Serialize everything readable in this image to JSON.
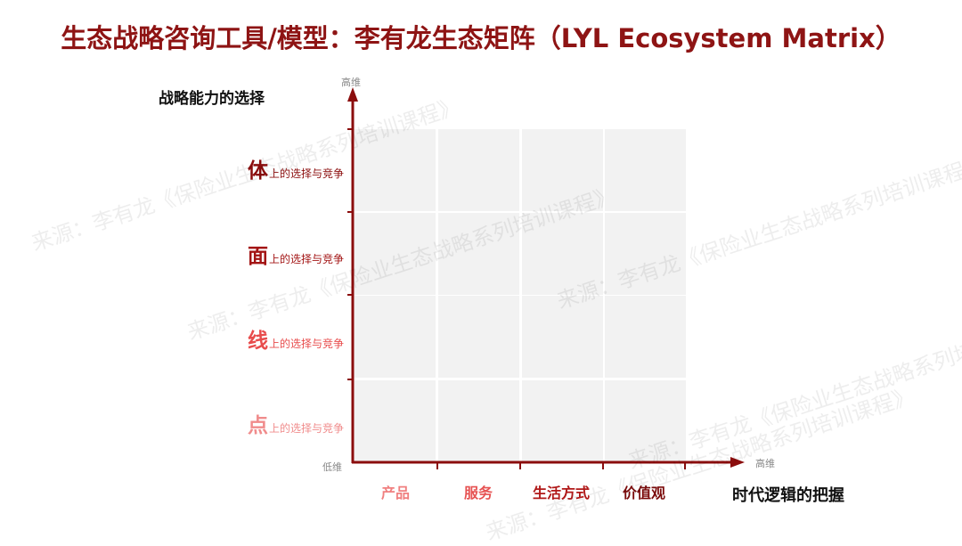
{
  "title": "生态战略咨询工具/模型：李有龙生态矩阵（LYL Ecosystem Matrix）",
  "y_axis": {
    "label": "战略能力的选择",
    "high": "高维",
    "low": "低维"
  },
  "x_axis": {
    "label": "时代逻辑的把握",
    "high": "高维"
  },
  "rows": [
    {
      "key": "体",
      "suffix": "上的选择与竞争",
      "color": "#8b0d0d"
    },
    {
      "key": "面",
      "suffix": "上的选择与竞争",
      "color": "#a31515"
    },
    {
      "key": "线",
      "suffix": "上的选择与竞争",
      "color": "#e84c4c"
    },
    {
      "key": "点",
      "suffix": "上的选择与竞争",
      "color": "#f08c8c"
    }
  ],
  "columns": [
    {
      "label": "产品",
      "color": "#f08080"
    },
    {
      "label": "服务",
      "color": "#e65252"
    },
    {
      "label": "生活方式",
      "color": "#b01818"
    },
    {
      "label": "价值观",
      "color": "#7a0a0a"
    }
  ],
  "colors": {
    "title": "#8e1414",
    "axis": "#8b0d0d",
    "cell": "#f2f2f2"
  },
  "watermark": "来源：李有龙《保险业生态战略系列培训课程》"
}
